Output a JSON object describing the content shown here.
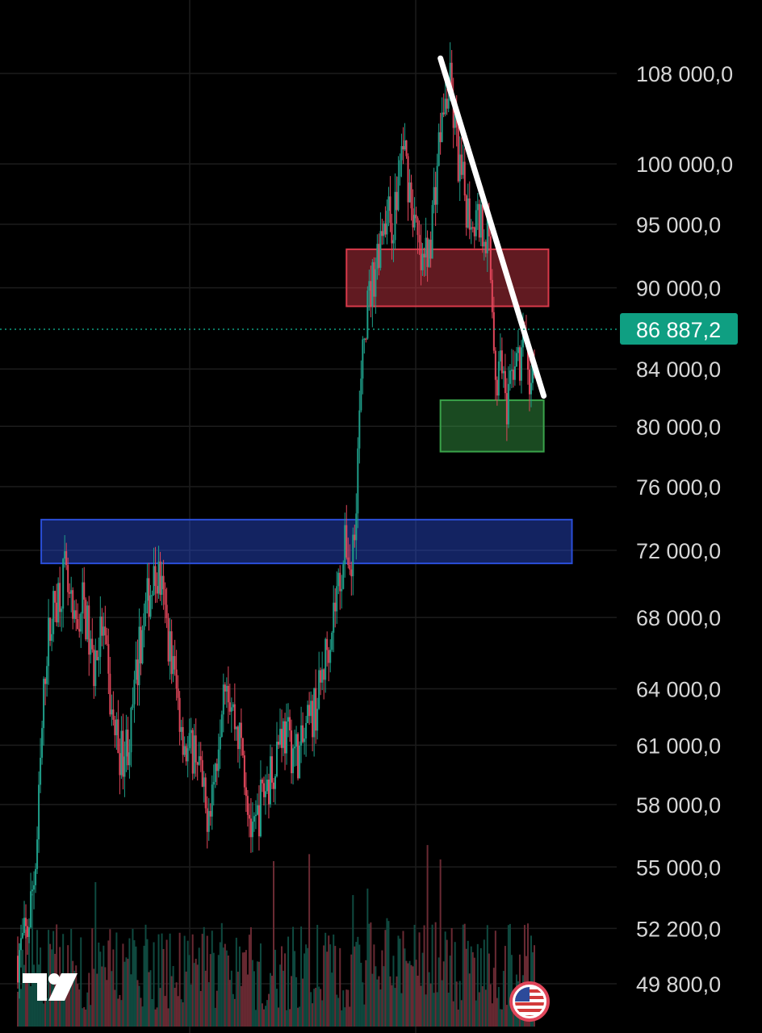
{
  "colors": {
    "background": "#000000",
    "grid": "#1c1c1c",
    "candle_up": "#1f9e89",
    "candle_down": "#e0465a",
    "volume_up": "#0f4a40",
    "volume_down": "#6a2a33",
    "current_price_tag": "#0f9f82",
    "resistance_zone": "#d83a4a",
    "support_zone": "#3aa34a",
    "breakout_zone": "#2a4ed8",
    "trendline": "#ffffff"
  },
  "chart_data": {
    "type": "candlestick",
    "ylim": [
      48800,
      111000
    ],
    "y_scale": "log",
    "grid": true,
    "y_ticks": [
      {
        "value": 108000,
        "label": "108 000,0"
      },
      {
        "value": 100000,
        "label": "100 000,0"
      },
      {
        "value": 95000,
        "label": "95 000,0"
      },
      {
        "value": 90000,
        "label": "90 000,0"
      },
      {
        "value": 84000,
        "label": "84 000,0"
      },
      {
        "value": 80000,
        "label": "80 000,0"
      },
      {
        "value": 76000,
        "label": "76 000,0"
      },
      {
        "value": 72000,
        "label": "72 000,0"
      },
      {
        "value": 68000,
        "label": "68 000,0"
      },
      {
        "value": 64000,
        "label": "64 000,0"
      },
      {
        "value": 61000,
        "label": "61 000,0"
      },
      {
        "value": 58000,
        "label": "58 000,0"
      },
      {
        "value": 55000,
        "label": "55 000,0"
      },
      {
        "value": 52200,
        "label": "52 200,0"
      },
      {
        "value": 49800,
        "label": "49 800,0"
      }
    ],
    "current_price": {
      "value": 86887.2,
      "label": "86 887,2"
    },
    "price_path": [
      [
        0,
        51000
      ],
      [
        2,
        52000
      ],
      [
        4,
        55500
      ],
      [
        6,
        66000
      ],
      [
        8,
        69000
      ],
      [
        10,
        70500
      ],
      [
        12,
        67000
      ],
      [
        14,
        69000
      ],
      [
        16,
        65000
      ],
      [
        18,
        67500
      ],
      [
        20,
        62500
      ],
      [
        22,
        60500
      ],
      [
        24,
        61500
      ],
      [
        26,
        66500
      ],
      [
        28,
        69500
      ],
      [
        30,
        70500
      ],
      [
        32,
        67000
      ],
      [
        34,
        63500
      ],
      [
        36,
        60500
      ],
      [
        38,
        61000
      ],
      [
        40,
        57500
      ],
      [
        42,
        59500
      ],
      [
        44,
        65500
      ],
      [
        46,
        62500
      ],
      [
        48,
        60500
      ],
      [
        50,
        56000
      ],
      [
        52,
        58500
      ],
      [
        54,
        59500
      ],
      [
        56,
        62000
      ],
      [
        58,
        61000
      ],
      [
        60,
        60500
      ],
      [
        62,
        62000
      ],
      [
        64,
        63500
      ],
      [
        66,
        66500
      ],
      [
        68,
        69500
      ],
      [
        70,
        72500
      ],
      [
        71,
        70500
      ],
      [
        72,
        75500
      ],
      [
        73,
        82000
      ],
      [
        74,
        87500
      ],
      [
        76,
        91500
      ],
      [
        78,
        96000
      ],
      [
        80,
        95000
      ],
      [
        82,
        102000
      ],
      [
        84,
        96500
      ],
      [
        86,
        91000
      ],
      [
        88,
        94500
      ],
      [
        90,
        103000
      ],
      [
        92,
        107000
      ],
      [
        94,
        99500
      ],
      [
        96,
        96000
      ],
      [
        98,
        95500
      ],
      [
        100,
        94500
      ],
      [
        101,
        89000
      ],
      [
        102,
        82500
      ],
      [
        103,
        86000
      ],
      [
        104,
        79500
      ],
      [
        105,
        83000
      ],
      [
        106,
        85500
      ],
      [
        107,
        83500
      ],
      [
        108,
        87500
      ],
      [
        109,
        82500
      ],
      [
        110,
        84500
      ]
    ],
    "zones": [
      {
        "name": "resistance",
        "bottom": 88600,
        "top": 93000,
        "x_start": 70,
        "x_end": 113
      },
      {
        "name": "support",
        "bottom": 78300,
        "top": 81800,
        "x_start": 90,
        "x_end": 112
      },
      {
        "name": "breakout",
        "bottom": 71200,
        "top": 73900,
        "x_start": 5,
        "x_end": 118
      }
    ],
    "trendline": {
      "start": [
        90,
        109400
      ],
      "end": [
        112,
        82100
      ]
    }
  }
}
